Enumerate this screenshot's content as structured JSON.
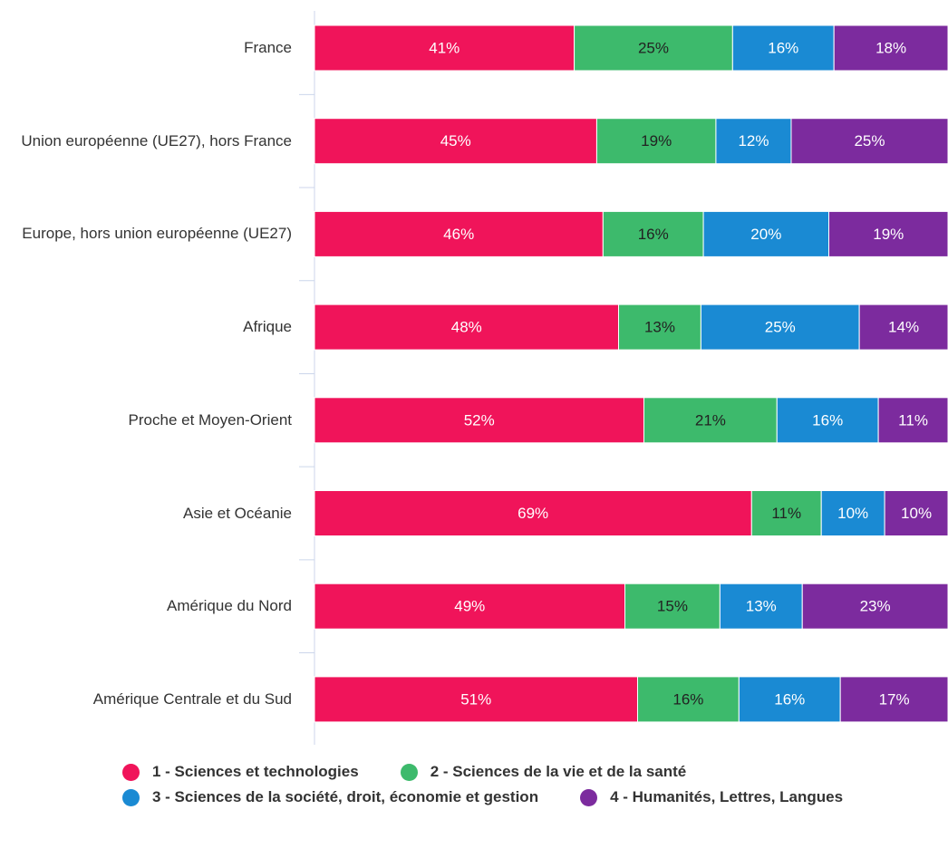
{
  "chart_data": {
    "type": "stacked-bar-horizontal",
    "categories": [
      "France",
      "Union européenne (UE27), hors France",
      "Europe, hors union européenne (UE27)",
      "Afrique",
      "Proche et Moyen-Orient",
      "Asie et Océanie",
      "Amérique du Nord",
      "Amérique Centrale et du Sud"
    ],
    "series": [
      {
        "name": "1 - Sciences et technologies",
        "color": "#f0145a",
        "label_color": "#ffffff",
        "values": [
          41,
          45,
          46,
          48,
          52,
          69,
          49,
          51
        ],
        "value_labels": [
          "41%",
          "45%",
          "46%",
          "48%",
          "52%",
          "69%",
          "49%",
          "51%"
        ]
      },
      {
        "name": "2 - Sciences de la vie et de la santé",
        "color": "#3dba6c",
        "label_color": "#222222",
        "values": [
          25,
          19,
          16,
          13,
          21,
          11,
          15,
          16
        ],
        "value_labels": [
          "25%",
          "19%",
          "16%",
          "13%",
          "21%",
          "11%",
          "15%",
          "16%"
        ]
      },
      {
        "name": "3 - Sciences de la société, droit, économie et gestion",
        "color": "#1a8ad3",
        "label_color": "#ffffff",
        "values": [
          16,
          12,
          20,
          25,
          16,
          10,
          13,
          16
        ],
        "value_labels": [
          "16%",
          "12%",
          "20%",
          "25%",
          "16%",
          "10%",
          "13%",
          "16%"
        ]
      },
      {
        "name": "4 - Humanités, Lettres, Langues",
        "color": "#7c2b9e",
        "label_color": "#ffffff",
        "values": [
          18,
          25,
          19,
          14,
          11,
          10,
          23,
          17
        ],
        "value_labels": [
          "18%",
          "25%",
          "19%",
          "14%",
          "11%",
          "10%",
          "23%",
          "17%"
        ]
      }
    ]
  }
}
